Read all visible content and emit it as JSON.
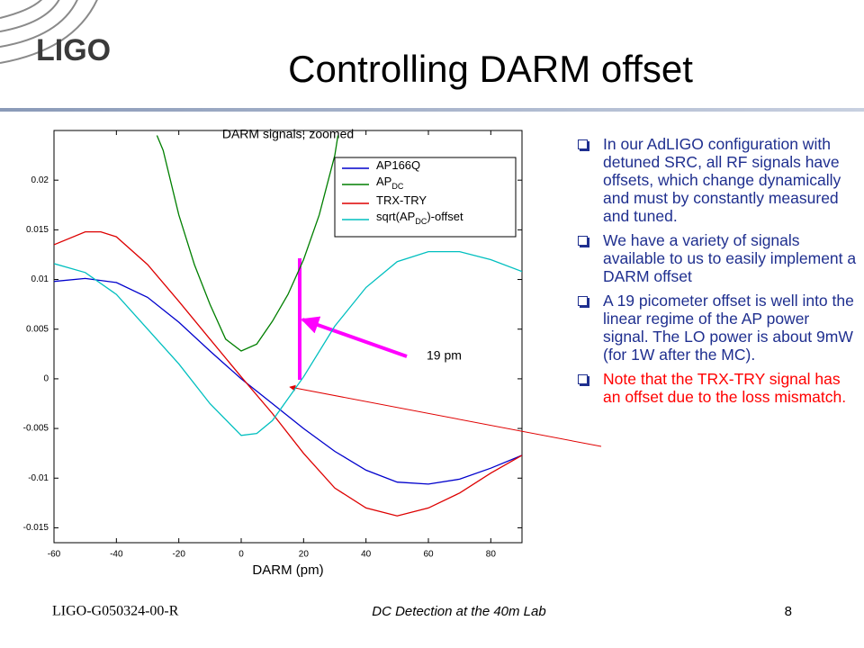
{
  "header": {
    "logo": "LIGO",
    "title": "Controlling DARM offset"
  },
  "chart_data": {
    "type": "line",
    "title": "DARM signals, zoomed",
    "xlabel": "DARM (pm)",
    "xlim": [
      -60,
      90
    ],
    "xticks": [
      -60,
      -40,
      -20,
      0,
      20,
      40,
      60,
      80
    ],
    "ylim": [
      -0.0165,
      0.025
    ],
    "yticks": [
      -0.015,
      -0.01,
      -0.005,
      0,
      0.005,
      0.01,
      0.015,
      0.02
    ],
    "grid": false,
    "legend": "upper right",
    "series": [
      {
        "name": "AP166Q",
        "color": "#0000cc",
        "x": [
          -60,
          -50,
          -40,
          -30,
          -20,
          -10,
          0,
          10,
          20,
          30,
          40,
          50,
          60,
          70,
          80,
          90
        ],
        "values": [
          0.0098,
          0.0101,
          0.0097,
          0.0082,
          0.0057,
          0.0028,
          0,
          -0.0025,
          -0.005,
          -0.0073,
          -0.0092,
          -0.0104,
          -0.0106,
          -0.0101,
          -0.009,
          -0.0077
        ]
      },
      {
        "name": "AP",
        "subscript": "DC",
        "color": "#007f00",
        "x": [
          -27,
          -25,
          -20,
          -15,
          -10,
          -5,
          0,
          5,
          10,
          15,
          20,
          25,
          30,
          31
        ],
        "values": [
          0.0245,
          0.023,
          0.0165,
          0.0115,
          0.0075,
          0.004,
          0.0028,
          0.0035,
          0.0058,
          0.0085,
          0.012,
          0.0165,
          0.0225,
          0.0245
        ]
      },
      {
        "name": "TRX-TRY",
        "color": "#dd0000",
        "x": [
          -60,
          -50,
          -45,
          -40,
          -30,
          -20,
          -10,
          0,
          10,
          20,
          30,
          40,
          50,
          60,
          70,
          80,
          90
        ],
        "values": [
          0.0135,
          0.0148,
          0.0148,
          0.0143,
          0.0115,
          0.0078,
          0.004,
          0.0002,
          -0.0035,
          -0.0075,
          -0.011,
          -0.013,
          -0.0138,
          -0.013,
          -0.0115,
          -0.0095,
          -0.0077
        ]
      },
      {
        "name": "sqrt(AP",
        "subscript": "DC",
        "name_end": ")-offset",
        "color": "#00bfbf",
        "x": [
          -60,
          -50,
          -40,
          -30,
          -20,
          -10,
          0,
          5,
          10,
          20,
          30,
          40,
          50,
          60,
          70,
          80,
          90
        ],
        "values": [
          0.0116,
          0.0107,
          0.0085,
          0.005,
          0.0015,
          -0.0025,
          -0.0057,
          -0.0055,
          -0.0042,
          0.0002,
          0.0053,
          0.0092,
          0.0118,
          0.0128,
          0.0128,
          0.012,
          0.0108
        ]
      }
    ],
    "annotation": "19 pm"
  },
  "bullets": [
    {
      "text": "In our AdLIGO configuration with detuned SRC, all RF signals have offsets, which change dynamically and must by constantly measured and tuned.",
      "color": "#1f2f8f"
    },
    {
      "text": "We have a variety of signals available to us to easily implement a DARM offset",
      "color": "#1f2f8f"
    },
    {
      "text": "A 19 picometer offset is well into the linear regime of the AP power signal. The LO power is about 9mW (for 1W after the MC).",
      "color": "#1f2f8f"
    },
    {
      "text": "Note that the TRX-TRY signal has an offset due to the loss mismatch.",
      "color": "#ff0000"
    }
  ],
  "footer": {
    "doc_id": "LIGO-G050324-00-R",
    "subtitle": "DC Detection at the 40m Lab",
    "page": "8"
  }
}
